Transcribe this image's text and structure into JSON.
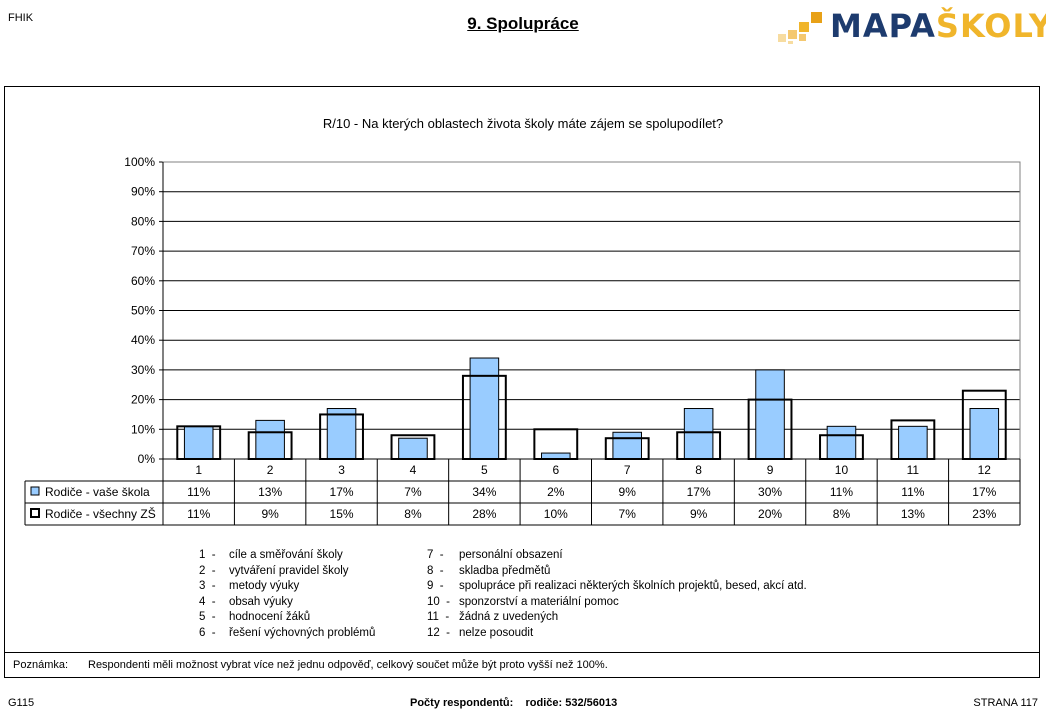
{
  "header": {
    "code": "FHIK",
    "title": "9. Spolupráce",
    "logo_part1": "MAPA",
    "logo_part2": "ŠKOLY"
  },
  "chart_data": {
    "type": "bar",
    "title": "R/10 - Na kterých oblastech života školy máte zájem se spolupodílet?",
    "categories": [
      "1",
      "2",
      "3",
      "4",
      "5",
      "6",
      "7",
      "8",
      "9",
      "10",
      "11",
      "12"
    ],
    "series": [
      {
        "name": "Rodiče - vaše škola",
        "values": [
          11,
          13,
          17,
          7,
          34,
          2,
          9,
          17,
          30,
          11,
          11,
          17
        ],
        "labels": [
          "11%",
          "13%",
          "17%",
          "7%",
          "34%",
          "2%",
          "9%",
          "17%",
          "30%",
          "11%",
          "11%",
          "17%"
        ],
        "color": "#99ccff",
        "style": "filled"
      },
      {
        "name": "Rodiče - všechny ZŠ",
        "values": [
          11,
          9,
          15,
          8,
          28,
          10,
          7,
          9,
          20,
          8,
          13,
          23
        ],
        "labels": [
          "11%",
          "9%",
          "15%",
          "8%",
          "28%",
          "10%",
          "7%",
          "9%",
          "20%",
          "8%",
          "13%",
          "23%"
        ],
        "color": "#000000",
        "style": "outline"
      }
    ],
    "ylim": [
      0,
      100
    ],
    "yticks": [
      "0%",
      "10%",
      "20%",
      "30%",
      "40%",
      "50%",
      "60%",
      "70%",
      "80%",
      "90%",
      "100%"
    ],
    "grid": true,
    "legend": "data-table"
  },
  "legend_left": [
    {
      "num": "1",
      "text": "cíle a směřování školy"
    },
    {
      "num": "2",
      "text": "vytváření pravidel školy"
    },
    {
      "num": "3",
      "text": "metody výuky"
    },
    {
      "num": "4",
      "text": "obsah výuky"
    },
    {
      "num": "5",
      "text": "hodnocení žáků"
    },
    {
      "num": "6",
      "text": "řešení výchovných problémů"
    }
  ],
  "legend_right": [
    {
      "num": "7",
      "text": "personální obsazení"
    },
    {
      "num": "8",
      "text": "skladba předmětů"
    },
    {
      "num": "9",
      "text": "spolupráce při realizaci některých školních projektů, besed, akcí atd."
    },
    {
      "num": "10",
      "text": "sponzorství a materiální pomoc"
    },
    {
      "num": "11",
      "text": "žádná z uvedených"
    },
    {
      "num": "12",
      "text": "nelze posoudit"
    }
  ],
  "note": {
    "label": "Poznámka:",
    "text": "Respondenti měli možnost vybrat více než jednu odpověď, celkový součet může být proto vyšší než 100%."
  },
  "footer": {
    "left": "G115",
    "center": "Počty respondentů:    rodiče: 532/56013",
    "right": "STRANA 117"
  }
}
